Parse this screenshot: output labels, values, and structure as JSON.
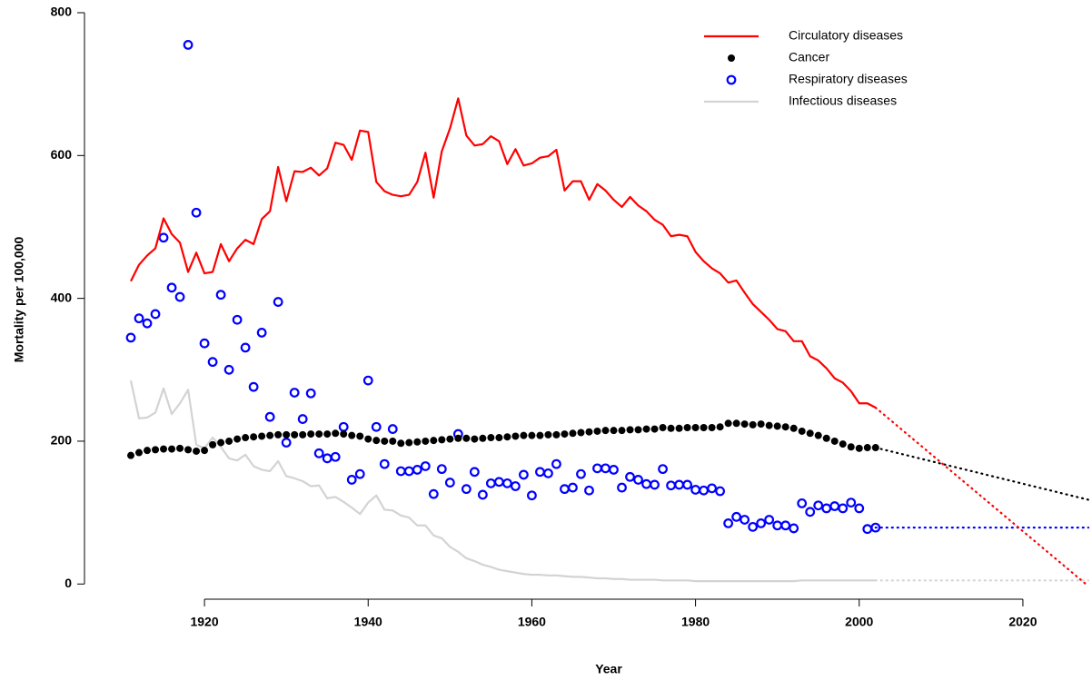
{
  "chart_data": {
    "type": "line",
    "x_label": "Year",
    "y_label": "Mortality per 100,000",
    "x": [
      1911,
      1912,
      1913,
      1914,
      1915,
      1916,
      1917,
      1918,
      1919,
      1920,
      1921,
      1922,
      1923,
      1924,
      1925,
      1926,
      1927,
      1928,
      1929,
      1930,
      1931,
      1932,
      1933,
      1934,
      1935,
      1936,
      1937,
      1938,
      1939,
      1940,
      1941,
      1942,
      1943,
      1944,
      1945,
      1946,
      1947,
      1948,
      1949,
      1950,
      1951,
      1952,
      1953,
      1954,
      1955,
      1956,
      1957,
      1958,
      1959,
      1960,
      1961,
      1962,
      1963,
      1964,
      1965,
      1966,
      1967,
      1968,
      1969,
      1970,
      1971,
      1972,
      1973,
      1974,
      1975,
      1976,
      1977,
      1978,
      1979,
      1980,
      1981,
      1982,
      1983,
      1984,
      1985,
      1986,
      1987,
      1988,
      1989,
      1990,
      1991,
      1992,
      1993,
      1994,
      1995,
      1996,
      1997,
      1998,
      1999,
      2000,
      2001,
      2002
    ],
    "series": [
      {
        "name": "Circulatory diseases",
        "color": "#ff0000",
        "mark": "line",
        "values": [
          424,
          447,
          460,
          470,
          512,
          490,
          478,
          437,
          464,
          435,
          437,
          476,
          452,
          470,
          482,
          476,
          511,
          522,
          584,
          536,
          578,
          577,
          583,
          572,
          582,
          618,
          615,
          594,
          635,
          633,
          563,
          550,
          545,
          543,
          545,
          563,
          604,
          541,
          606,
          638,
          680,
          628,
          614,
          616,
          627,
          620,
          588,
          609,
          586,
          589,
          597,
          599,
          608,
          551,
          564,
          564,
          538,
          560,
          551,
          538,
          528,
          542,
          530,
          522,
          510,
          503,
          487,
          489,
          487,
          465,
          452,
          442,
          435,
          422,
          425,
          408,
          392,
          381,
          370,
          357,
          354,
          340,
          340,
          319,
          313,
          302,
          288,
          282,
          270,
          253,
          253,
          247
        ],
        "projection": {
          "x": [
            2002,
            2028
          ],
          "values": [
            247,
            -3
          ]
        }
      },
      {
        "name": "Cancer",
        "color": "#000000",
        "mark": "dot",
        "values": [
          180,
          184,
          187,
          188,
          189,
          189,
          190,
          188,
          186,
          187,
          195,
          198,
          200,
          203,
          205,
          206,
          207,
          208,
          209,
          209,
          209,
          209,
          210,
          210,
          210,
          211,
          210,
          208,
          207,
          203,
          201,
          200,
          200,
          197,
          198,
          199,
          200,
          201,
          202,
          203,
          204,
          204,
          203,
          204,
          205,
          205,
          206,
          207,
          208,
          208,
          208,
          209,
          209,
          210,
          211,
          212,
          213,
          214,
          215,
          215,
          215,
          216,
          216,
          217,
          217,
          219,
          218,
          218,
          219,
          219,
          219,
          219,
          220,
          225,
          225,
          224,
          223,
          224,
          222,
          221,
          220,
          218,
          214,
          211,
          208,
          204,
          200,
          196,
          192,
          190,
          191,
          191
        ],
        "projection": {
          "x": [
            2002,
            2028
          ],
          "values": [
            191,
            118
          ]
        }
      },
      {
        "name": "Respiratory diseases",
        "color": "#0000ff",
        "mark": "circle",
        "values": [
          345,
          372,
          365,
          378,
          485,
          415,
          402,
          755,
          520,
          337,
          311,
          405,
          300,
          370,
          331,
          276,
          352,
          234,
          395,
          198,
          268,
          231,
          267,
          183,
          176,
          178,
          220,
          146,
          154,
          285,
          220,
          168,
          217,
          158,
          158,
          160,
          165,
          126,
          161,
          142,
          210,
          133,
          157,
          125,
          141,
          143,
          141,
          137,
          153,
          124,
          157,
          155,
          168,
          133,
          135,
          154,
          131,
          162,
          162,
          160,
          135,
          150,
          146,
          140,
          139,
          161,
          138,
          139,
          139,
          132,
          131,
          134,
          130,
          85,
          94,
          90,
          80,
          85,
          90,
          82,
          82,
          78,
          113,
          101,
          110,
          106,
          109,
          106,
          114,
          106,
          77,
          79
        ],
        "projection": {
          "x": [
            2002,
            2028
          ],
          "values": [
            79,
            79
          ]
        }
      },
      {
        "name": "Infectious diseases",
        "color": "#d3d3d3",
        "mark": "line",
        "values": [
          285,
          232,
          233,
          240,
          274,
          238,
          253,
          272,
          195,
          190,
          205,
          192,
          176,
          173,
          181,
          165,
          160,
          158,
          172,
          151,
          148,
          144,
          137,
          138,
          120,
          122,
          115,
          107,
          98,
          114,
          124,
          104,
          103,
          96,
          93,
          82,
          82,
          68,
          64,
          52,
          45,
          36,
          32,
          27,
          24,
          20,
          18,
          16,
          14,
          13,
          13,
          12,
          12,
          11,
          10,
          10,
          9,
          8,
          8,
          7,
          7,
          6,
          6,
          6,
          6,
          5,
          5,
          5,
          5,
          4,
          4,
          4,
          4,
          4,
          4,
          4,
          4,
          4,
          4,
          4,
          4,
          4,
          5,
          5,
          5,
          5,
          5,
          5,
          5,
          5,
          5,
          5
        ],
        "projection": {
          "x": [
            2002,
            2028
          ],
          "values": [
            5,
            5
          ]
        }
      }
    ],
    "xlim": [
      1911,
      2028
    ],
    "ylim": [
      -20,
      800
    ],
    "xticks": [
      1920,
      1940,
      1960,
      1980,
      2000,
      2020
    ],
    "yticks": [
      0,
      200,
      400,
      600,
      800
    ],
    "legend": "top-right"
  }
}
